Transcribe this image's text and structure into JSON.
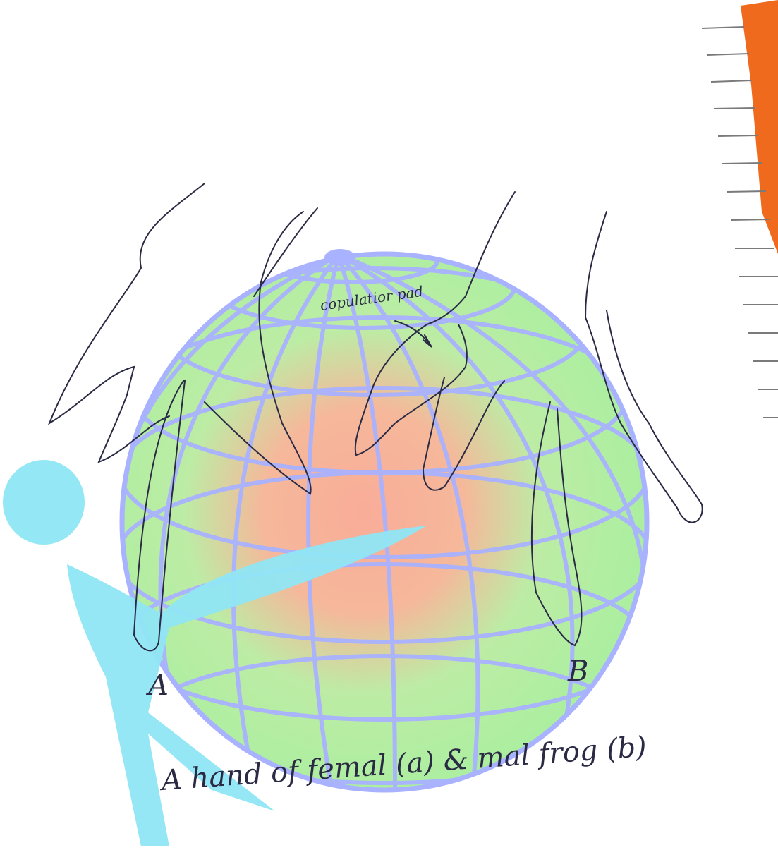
{
  "figure": {
    "annotation_text": "copulatior pad",
    "label_a": "A",
    "label_b": "B",
    "caption": "A hand of femal (a) & mal frog (b)"
  },
  "colors": {
    "globe_fill": "#a8f09e",
    "globe_center": "#f7ae94",
    "grid": "#a9b2ff",
    "logo": "#8fe6f4",
    "ink": "#2a2a44",
    "cover_orange": "#f06a1e",
    "notebook_line": "#666666"
  }
}
